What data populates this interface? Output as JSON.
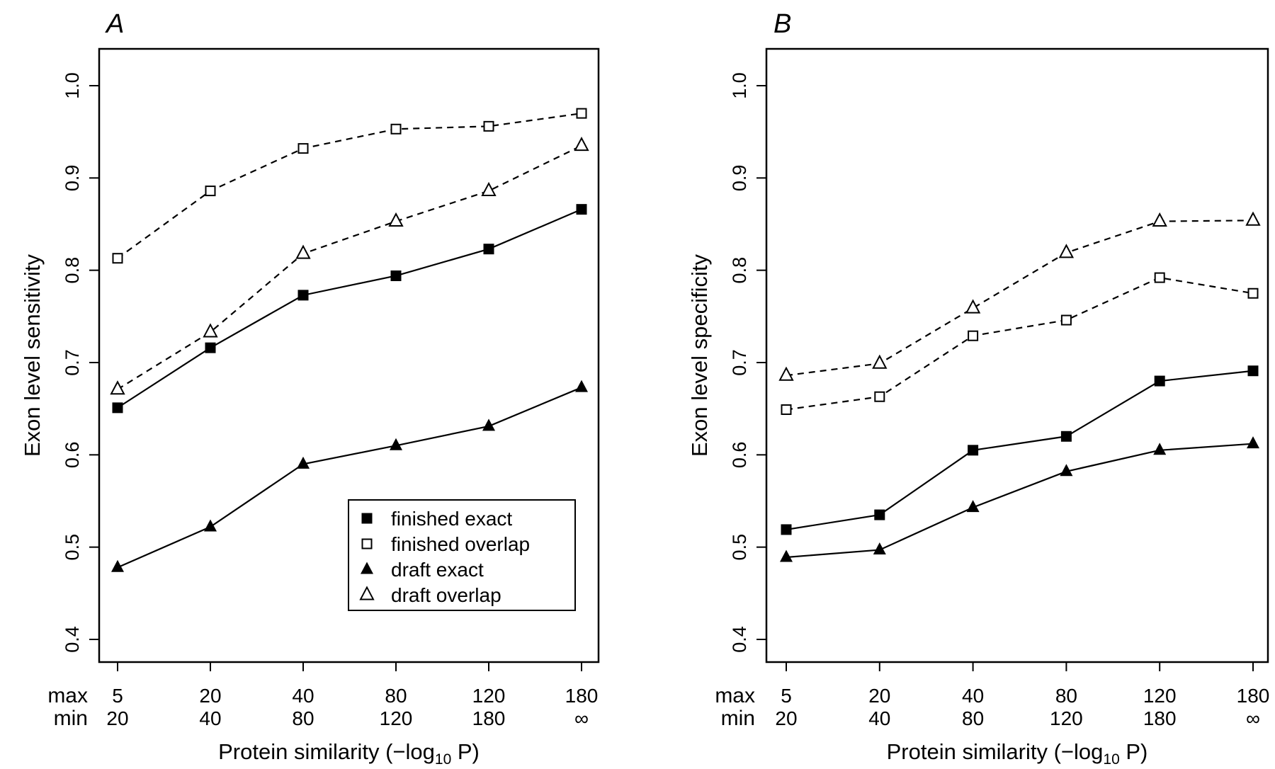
{
  "chart_data": [
    {
      "panel_label": "A",
      "type": "line",
      "ylabel": "Exon level sensitivity",
      "xlabel_main": "Protein similarity (−log",
      "xlabel_sub": "10",
      "xlabel_tail": " P)",
      "ylim": [
        0.4,
        1.0
      ],
      "yticks": [
        "0.4",
        "0.5",
        "0.6",
        "0.7",
        "0.8",
        "0.9",
        "1.0"
      ],
      "row_labels": {
        "max": "max",
        "min": "min"
      },
      "categories_max": [
        "5",
        "20",
        "40",
        "80",
        "120",
        "180"
      ],
      "categories_min": [
        "20",
        "40",
        "80",
        "120",
        "180",
        "∞"
      ],
      "legend_position": "bottom-right",
      "series": [
        {
          "name": "finished exact",
          "marker": "square-filled",
          "line": "solid",
          "values": [
            0.651,
            0.716,
            0.773,
            0.794,
            0.823,
            0.866
          ]
        },
        {
          "name": "finished overlap",
          "marker": "square-open",
          "line": "dashed",
          "values": [
            0.813,
            0.886,
            0.932,
            0.953,
            0.956,
            0.97
          ]
        },
        {
          "name": "draft exact",
          "marker": "triangle-filled",
          "line": "solid",
          "values": [
            0.478,
            0.522,
            0.59,
            0.61,
            0.631,
            0.673
          ]
        },
        {
          "name": "draft overlap",
          "marker": "triangle-open",
          "line": "dashed",
          "values": [
            0.671,
            0.733,
            0.818,
            0.853,
            0.886,
            0.935
          ]
        }
      ]
    },
    {
      "panel_label": "B",
      "type": "line",
      "ylabel": "Exon level specificity",
      "xlabel_main": "Protein similarity (−log",
      "xlabel_sub": "10",
      "xlabel_tail": " P)",
      "ylim": [
        0.4,
        1.0
      ],
      "yticks": [
        "0.4",
        "0.5",
        "0.6",
        "0.7",
        "0.8",
        "0.9",
        "1.0"
      ],
      "row_labels": {
        "max": "max",
        "min": "min"
      },
      "categories_max": [
        "5",
        "20",
        "40",
        "80",
        "120",
        "180"
      ],
      "categories_min": [
        "20",
        "40",
        "80",
        "120",
        "180",
        "∞"
      ],
      "series": [
        {
          "name": "finished exact",
          "marker": "square-filled",
          "line": "solid",
          "values": [
            0.519,
            0.535,
            0.605,
            0.62,
            0.68,
            0.691
          ]
        },
        {
          "name": "finished overlap",
          "marker": "square-open",
          "line": "dashed",
          "values": [
            0.649,
            0.663,
            0.729,
            0.746,
            0.792,
            0.775
          ]
        },
        {
          "name": "draft exact",
          "marker": "triangle-filled",
          "line": "solid",
          "values": [
            0.489,
            0.497,
            0.543,
            0.582,
            0.605,
            0.612
          ]
        },
        {
          "name": "draft overlap",
          "marker": "triangle-open",
          "line": "dashed",
          "values": [
            0.686,
            0.699,
            0.759,
            0.819,
            0.853,
            0.854
          ]
        }
      ]
    }
  ]
}
